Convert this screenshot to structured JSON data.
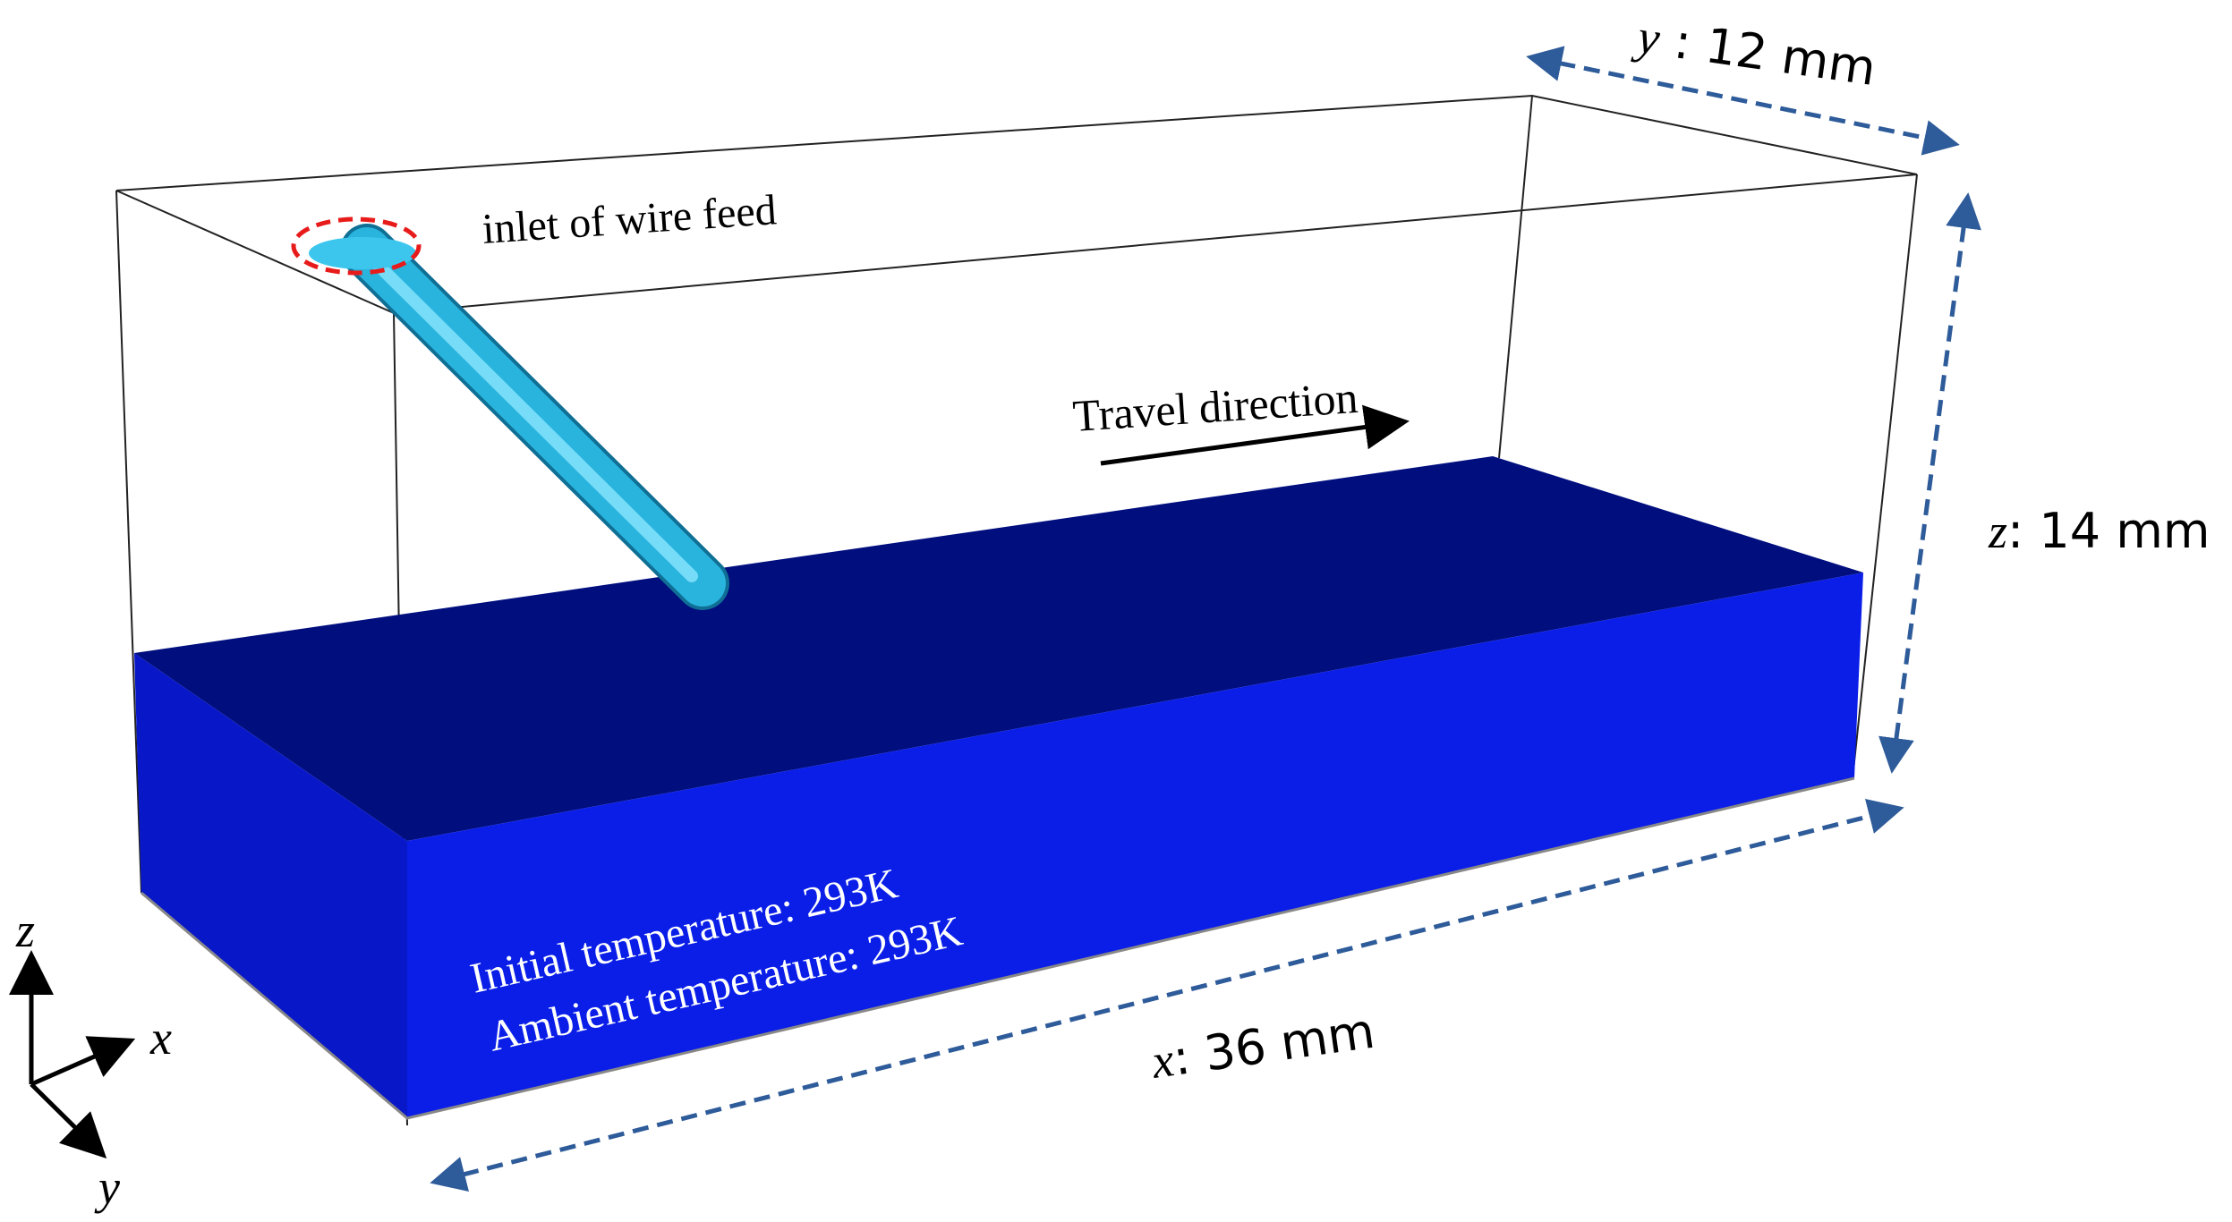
{
  "colors": {
    "outline": "#222222",
    "block_top": "#000e7e",
    "block_front": "#0a1ee8",
    "wire": "#29b4de",
    "inlet_marker": "#e81b1b",
    "dimension_arrow": "#2e5b99",
    "text": "#000000",
    "text_on_block": "#ffffff"
  },
  "labels": {
    "inlet": "inlet of wire feed",
    "travel": "Travel direction",
    "initial_temp": "Initial temperature: 293K",
    "ambient_temp": "Ambient temperature: 293K"
  },
  "dimensions": {
    "x": {
      "var": "x",
      "value": ": 36 mm"
    },
    "y": {
      "var": "y",
      "value": " : 12 mm"
    },
    "z": {
      "var": "z",
      "value": ": 14 mm"
    }
  },
  "axes": {
    "x": "x",
    "y": "y",
    "z": "z"
  }
}
